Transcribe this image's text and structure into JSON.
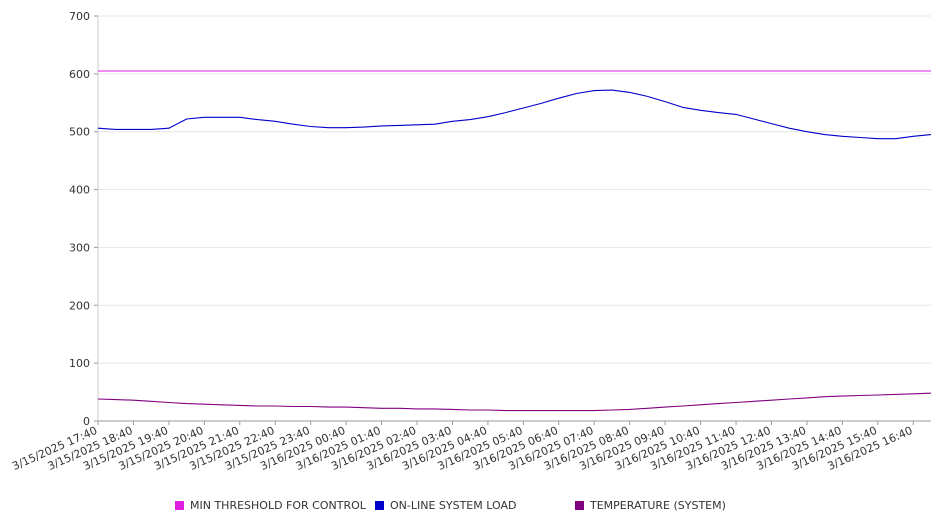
{
  "chart_data": {
    "type": "line",
    "title": "",
    "xlabel": "",
    "ylabel": "",
    "ylim": [
      0,
      700
    ],
    "yticks": [
      0,
      100,
      200,
      300,
      400,
      500,
      600,
      700
    ],
    "xticks": [
      "3/15/2025 17:40",
      "3/15/2025 18:40",
      "3/15/2025 19:40",
      "3/15/2025 20:40",
      "3/15/2025 21:40",
      "3/15/2025 22:40",
      "3/15/2025 23:40",
      "3/16/2025 00:40",
      "3/16/2025 01:40",
      "3/16/2025 02:40",
      "3/16/2025 03:40",
      "3/16/2025 04:40",
      "3/16/2025 05:40",
      "3/16/2025 06:40",
      "3/16/2025 07:40",
      "3/16/2025 08:40",
      "3/16/2025 09:40",
      "3/16/2025 10:40",
      "3/16/2025 11:40",
      "3/16/2025 12:40",
      "3/16/2025 13:40",
      "3/16/2025 14:40",
      "3/16/2025 15:40",
      "3/16/2025 16:40"
    ],
    "x": [
      "3/15/2025 17:40",
      "3/15/2025 18:10",
      "3/15/2025 18:40",
      "3/15/2025 19:10",
      "3/15/2025 19:40",
      "3/15/2025 20:10",
      "3/15/2025 20:40",
      "3/15/2025 21:10",
      "3/15/2025 21:40",
      "3/15/2025 22:10",
      "3/15/2025 22:40",
      "3/15/2025 23:10",
      "3/15/2025 23:40",
      "3/16/2025 00:10",
      "3/16/2025 00:40",
      "3/16/2025 01:10",
      "3/16/2025 01:40",
      "3/16/2025 02:10",
      "3/16/2025 02:40",
      "3/16/2025 03:10",
      "3/16/2025 03:40",
      "3/16/2025 04:10",
      "3/16/2025 04:40",
      "3/16/2025 05:10",
      "3/16/2025 05:40",
      "3/16/2025 06:10",
      "3/16/2025 06:40",
      "3/16/2025 07:10",
      "3/16/2025 07:40",
      "3/16/2025 08:10",
      "3/16/2025 08:40",
      "3/16/2025 09:10",
      "3/16/2025 09:40",
      "3/16/2025 10:10",
      "3/16/2025 10:40",
      "3/16/2025 11:10",
      "3/16/2025 11:40",
      "3/16/2025 12:10",
      "3/16/2025 12:40",
      "3/16/2025 13:10",
      "3/16/2025 13:40",
      "3/16/2025 14:10",
      "3/16/2025 14:40",
      "3/16/2025 15:10",
      "3/16/2025 15:40",
      "3/16/2025 16:10",
      "3/16/2025 16:40",
      "3/16/2025 17:10"
    ],
    "grid": true,
    "legend_position": "bottom",
    "series": [
      {
        "name": "MIN THRESHOLD FOR CONTROL",
        "color": "#e01ee0",
        "values": [
          605,
          605,
          605,
          605,
          605,
          605,
          605,
          605,
          605,
          605,
          605,
          605,
          605,
          605,
          605,
          605,
          605,
          605,
          605,
          605,
          605,
          605,
          605,
          605,
          605,
          605,
          605,
          605,
          605,
          605,
          605,
          605,
          605,
          605,
          605,
          605,
          605,
          605,
          605,
          605,
          605,
          605,
          605,
          605,
          605,
          605,
          605,
          605
        ]
      },
      {
        "name": "ON-LINE SYSTEM LOAD",
        "color": "#0000cc",
        "values": [
          506,
          504,
          504,
          504,
          506,
          522,
          525,
          525,
          525,
          521,
          518,
          513,
          509,
          507,
          507,
          508,
          510,
          511,
          512,
          513,
          518,
          521,
          526,
          533,
          541,
          549,
          558,
          566,
          571,
          572,
          568,
          561,
          552,
          542,
          537,
          533,
          530,
          522,
          514,
          506,
          500,
          495,
          492,
          490,
          488,
          488,
          492,
          495
        ]
      },
      {
        "name": "TEMPERATURE (SYSTEM)",
        "color": "#800080",
        "values": [
          38,
          37,
          36,
          34,
          32,
          30,
          29,
          28,
          27,
          26,
          26,
          25,
          25,
          24,
          24,
          23,
          22,
          22,
          21,
          21,
          20,
          19,
          19,
          18,
          18,
          18,
          18,
          18,
          18,
          19,
          20,
          22,
          24,
          26,
          28,
          30,
          32,
          34,
          36,
          38,
          40,
          42,
          43,
          44,
          45,
          46,
          47,
          48
        ]
      }
    ]
  }
}
